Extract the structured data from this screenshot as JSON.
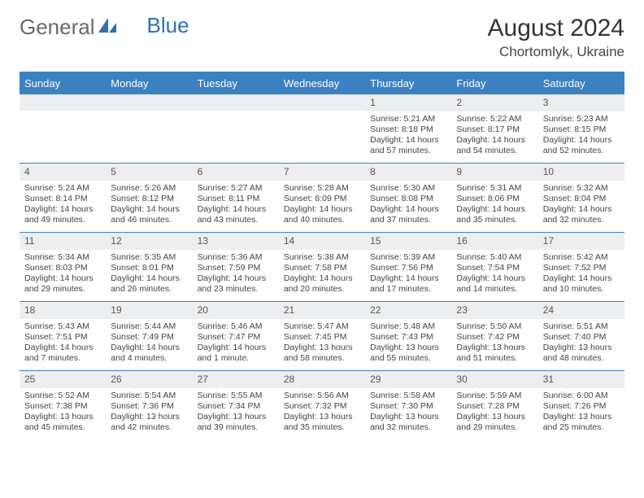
{
  "logo": {
    "text1": "General",
    "text2": "Blue",
    "color1": "#6a6a6a",
    "color2": "#2f6fb0"
  },
  "title": "August 2024",
  "location": "Chortomlyk, Ukraine",
  "colors": {
    "header_bg": "#3b81c2",
    "header_text": "#ffffff",
    "daynum_bg": "#eceef0",
    "border": "#3b81c2",
    "text": "#444444"
  },
  "day_names": [
    "Sunday",
    "Monday",
    "Tuesday",
    "Wednesday",
    "Thursday",
    "Friday",
    "Saturday"
  ],
  "weeks": [
    [
      null,
      null,
      null,
      null,
      {
        "n": "1",
        "sr": "5:21 AM",
        "ss": "8:18 PM",
        "dl": "14 hours and 57 minutes."
      },
      {
        "n": "2",
        "sr": "5:22 AM",
        "ss": "8:17 PM",
        "dl": "14 hours and 54 minutes."
      },
      {
        "n": "3",
        "sr": "5:23 AM",
        "ss": "8:15 PM",
        "dl": "14 hours and 52 minutes."
      }
    ],
    [
      {
        "n": "4",
        "sr": "5:24 AM",
        "ss": "8:14 PM",
        "dl": "14 hours and 49 minutes."
      },
      {
        "n": "5",
        "sr": "5:26 AM",
        "ss": "8:12 PM",
        "dl": "14 hours and 46 minutes."
      },
      {
        "n": "6",
        "sr": "5:27 AM",
        "ss": "8:11 PM",
        "dl": "14 hours and 43 minutes."
      },
      {
        "n": "7",
        "sr": "5:28 AM",
        "ss": "8:09 PM",
        "dl": "14 hours and 40 minutes."
      },
      {
        "n": "8",
        "sr": "5:30 AM",
        "ss": "8:08 PM",
        "dl": "14 hours and 37 minutes."
      },
      {
        "n": "9",
        "sr": "5:31 AM",
        "ss": "8:06 PM",
        "dl": "14 hours and 35 minutes."
      },
      {
        "n": "10",
        "sr": "5:32 AM",
        "ss": "8:04 PM",
        "dl": "14 hours and 32 minutes."
      }
    ],
    [
      {
        "n": "11",
        "sr": "5:34 AM",
        "ss": "8:03 PM",
        "dl": "14 hours and 29 minutes."
      },
      {
        "n": "12",
        "sr": "5:35 AM",
        "ss": "8:01 PM",
        "dl": "14 hours and 26 minutes."
      },
      {
        "n": "13",
        "sr": "5:36 AM",
        "ss": "7:59 PM",
        "dl": "14 hours and 23 minutes."
      },
      {
        "n": "14",
        "sr": "5:38 AM",
        "ss": "7:58 PM",
        "dl": "14 hours and 20 minutes."
      },
      {
        "n": "15",
        "sr": "5:39 AM",
        "ss": "7:56 PM",
        "dl": "14 hours and 17 minutes."
      },
      {
        "n": "16",
        "sr": "5:40 AM",
        "ss": "7:54 PM",
        "dl": "14 hours and 14 minutes."
      },
      {
        "n": "17",
        "sr": "5:42 AM",
        "ss": "7:52 PM",
        "dl": "14 hours and 10 minutes."
      }
    ],
    [
      {
        "n": "18",
        "sr": "5:43 AM",
        "ss": "7:51 PM",
        "dl": "14 hours and 7 minutes."
      },
      {
        "n": "19",
        "sr": "5:44 AM",
        "ss": "7:49 PM",
        "dl": "14 hours and 4 minutes."
      },
      {
        "n": "20",
        "sr": "5:46 AM",
        "ss": "7:47 PM",
        "dl": "14 hours and 1 minute."
      },
      {
        "n": "21",
        "sr": "5:47 AM",
        "ss": "7:45 PM",
        "dl": "13 hours and 58 minutes."
      },
      {
        "n": "22",
        "sr": "5:48 AM",
        "ss": "7:43 PM",
        "dl": "13 hours and 55 minutes."
      },
      {
        "n": "23",
        "sr": "5:50 AM",
        "ss": "7:42 PM",
        "dl": "13 hours and 51 minutes."
      },
      {
        "n": "24",
        "sr": "5:51 AM",
        "ss": "7:40 PM",
        "dl": "13 hours and 48 minutes."
      }
    ],
    [
      {
        "n": "25",
        "sr": "5:52 AM",
        "ss": "7:38 PM",
        "dl": "13 hours and 45 minutes."
      },
      {
        "n": "26",
        "sr": "5:54 AM",
        "ss": "7:36 PM",
        "dl": "13 hours and 42 minutes."
      },
      {
        "n": "27",
        "sr": "5:55 AM",
        "ss": "7:34 PM",
        "dl": "13 hours and 39 minutes."
      },
      {
        "n": "28",
        "sr": "5:56 AM",
        "ss": "7:32 PM",
        "dl": "13 hours and 35 minutes."
      },
      {
        "n": "29",
        "sr": "5:58 AM",
        "ss": "7:30 PM",
        "dl": "13 hours and 32 minutes."
      },
      {
        "n": "30",
        "sr": "5:59 AM",
        "ss": "7:28 PM",
        "dl": "13 hours and 29 minutes."
      },
      {
        "n": "31",
        "sr": "6:00 AM",
        "ss": "7:26 PM",
        "dl": "13 hours and 25 minutes."
      }
    ]
  ],
  "labels": {
    "sunrise": "Sunrise:",
    "sunset": "Sunset:",
    "daylight": "Daylight:"
  }
}
